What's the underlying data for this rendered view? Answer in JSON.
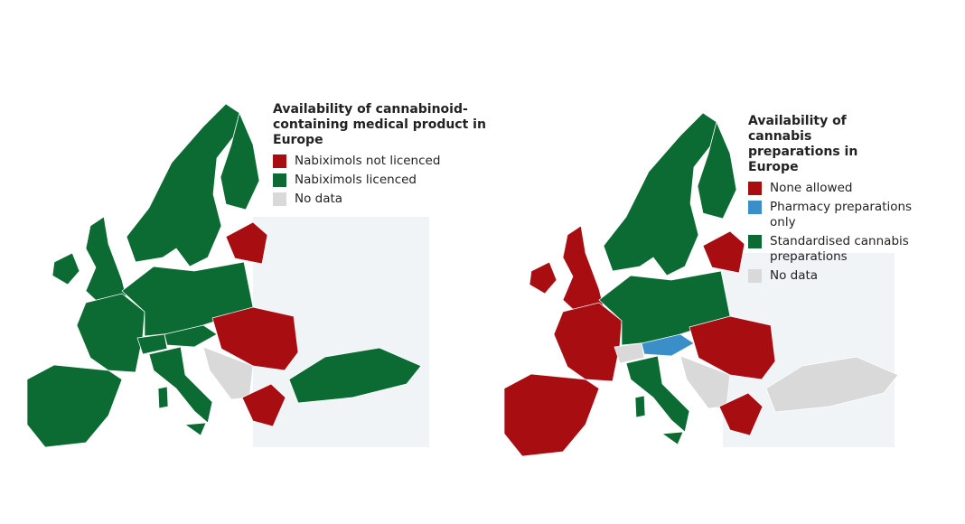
{
  "maps": [
    {
      "title": "Availability of cannabinoid-containing medical product in Europe",
      "legend": [
        {
          "label": "Nabiximols not licenced",
          "color": "#a80d12"
        },
        {
          "label": "Nabiximols licenced",
          "color": "#0b6b33"
        },
        {
          "label": "No data",
          "color": "#d9d9d9"
        }
      ]
    },
    {
      "title": "Availability of cannabis preparations in Europe",
      "legend": [
        {
          "label": "None allowed",
          "color": "#a80d12"
        },
        {
          "label": "Pharmacy preparations only",
          "color": "#3a8fc8"
        },
        {
          "label": "Standardised cannabis preparations",
          "color": "#0b6b33"
        },
        {
          "label": "No data",
          "color": "#d9d9d9"
        }
      ]
    }
  ]
}
